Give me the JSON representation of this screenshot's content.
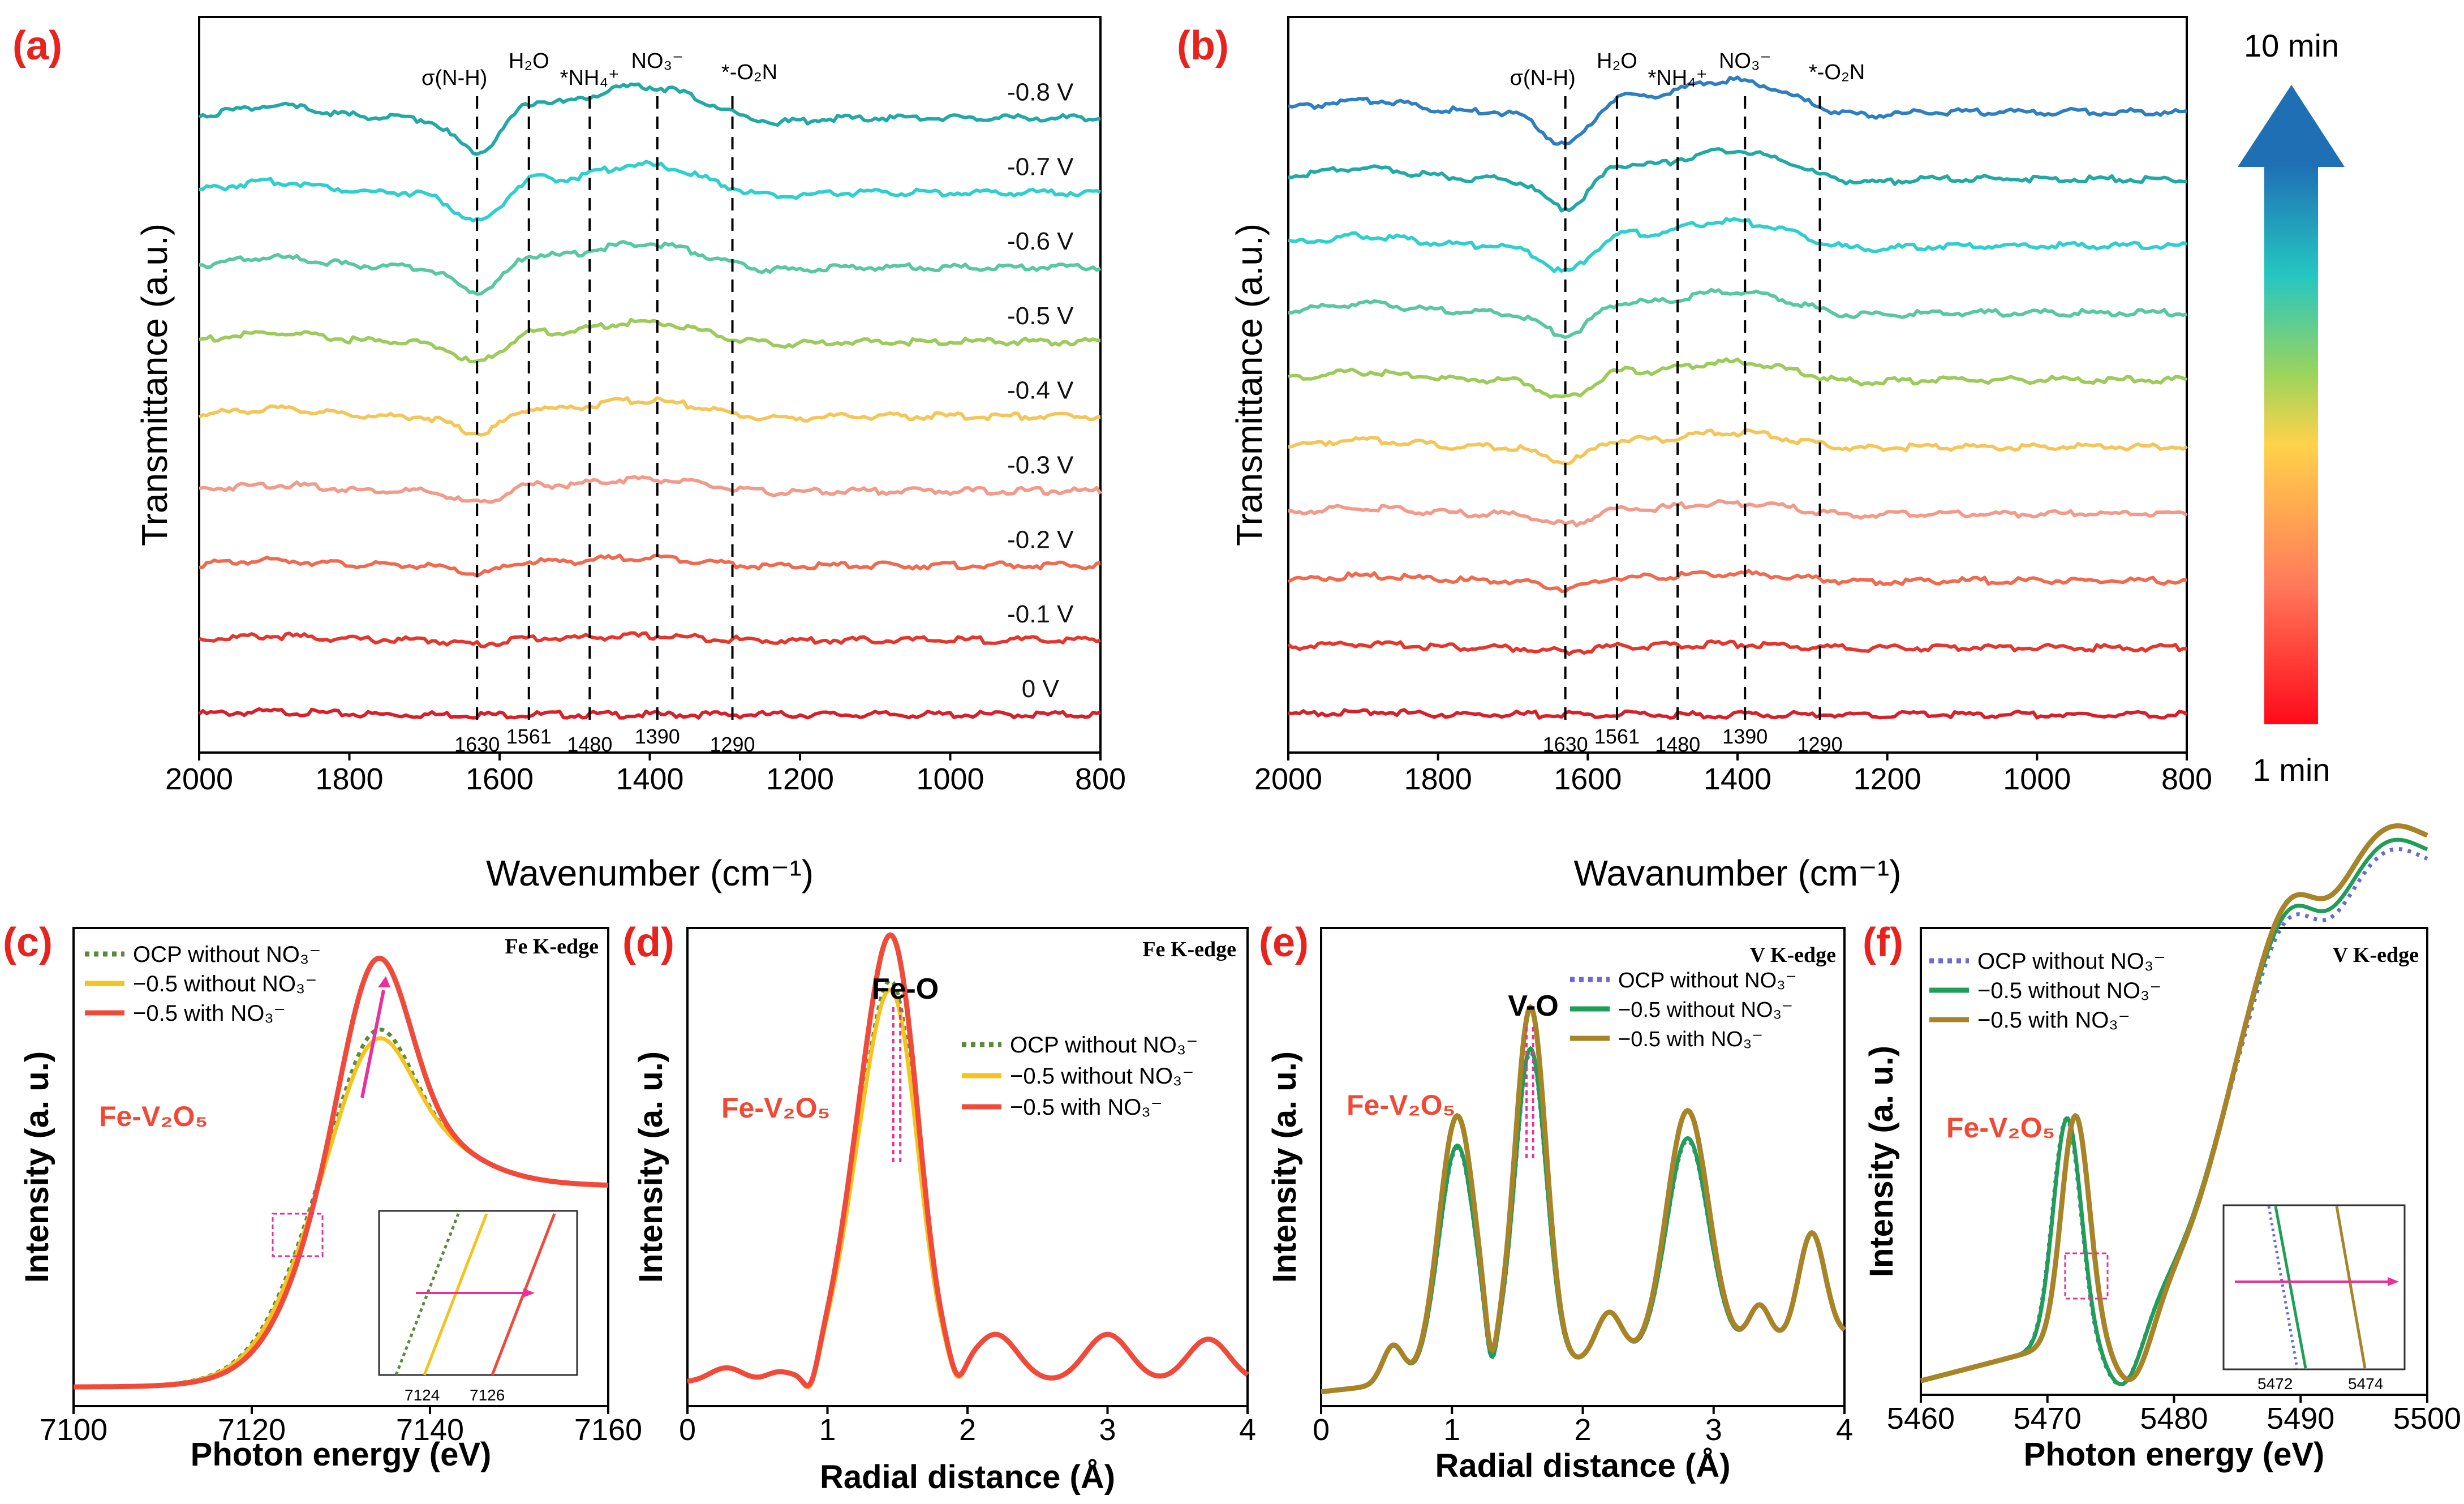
{
  "colors": {
    "panel_label": "#e8231e",
    "fe_v2o5": "#f04a36",
    "arrow_pink": "#e8319a",
    "dash_pink": "#e8319a",
    "curves_ab": [
      "#d8202a",
      "#e3362d",
      "#ef6a4f",
      "#f39b8b",
      "#f4c65a",
      "#9ccb5a",
      "#58c8a0",
      "#2fcfd0",
      "#21a9a8",
      "#2d7fc2"
    ],
    "ocp_cd": "#5a8a3a",
    "m05wo_cd": "#f6c21c",
    "m05w_cd": "#ef4a3a",
    "ocp_ef": "#6a6ad0",
    "m05wo_ef": "#1e9e57",
    "m05w_ef": "#a88428"
  },
  "colorbar": {
    "top_label": "10 min",
    "bottom_label": "1 min"
  },
  "chart_data": [
    {
      "id": "a",
      "panel_label": "(a)",
      "type": "line",
      "xlabel": "Wavenumber (cm⁻¹)",
      "ylabel": "Transmittance (a.u.)",
      "xlim": [
        2000,
        800
      ],
      "xticks": [
        2000,
        1800,
        1600,
        1400,
        1200,
        1000,
        800
      ],
      "series_labels": [
        "0 V",
        "-0.1 V",
        "-0.2 V",
        "-0.3 V",
        "-0.4 V",
        "-0.5 V",
        "-0.6 V",
        "-0.7 V",
        "-0.8 V"
      ],
      "series_offsets": [
        0,
        1,
        2,
        3,
        4,
        5,
        6,
        7,
        8
      ],
      "ref_lines": [
        1630,
        1561,
        1480,
        1390,
        1290
      ],
      "ref_tick_labels": [
        "1630",
        "1561",
        "1480",
        "1390",
        "1290"
      ],
      "band_labels": [
        "σ(N-H)",
        "H₂O",
        "*NH₄⁺",
        "NO₃⁻",
        "*-O₂N"
      ]
    },
    {
      "id": "b",
      "panel_label": "(b)",
      "type": "line",
      "xlabel": "Wavanumber (cm⁻¹)",
      "ylabel": "Transmittance (a.u.)",
      "xlim": [
        2000,
        800
      ],
      "xticks": [
        2000,
        1800,
        1600,
        1400,
        1200,
        1000,
        800
      ],
      "n_series": 10,
      "ref_lines": [
        1630,
        1561,
        1480,
        1390,
        1290
      ],
      "ref_tick_labels": [
        "1630",
        "1561",
        "1480",
        "1390",
        "1290"
      ],
      "band_labels": [
        "σ(N-H)",
        "H₂O",
        "*NH₄⁺",
        "NO₃⁻",
        "*-O₂N"
      ]
    },
    {
      "id": "c",
      "panel_label": "(c)",
      "type": "line",
      "edge": "Fe K-edge",
      "material": "Fe-V₂O₅",
      "xlabel": "Photon energy (eV)",
      "ylabel": "Intensity (a. u.)",
      "xlim": [
        7100,
        7160
      ],
      "xticks": [
        7100,
        7120,
        7140,
        7160
      ],
      "legend": [
        "OCP  without NO₃⁻",
        "−0.5  without NO₃⁻",
        "−0.5  with NO₃⁻"
      ],
      "peak_energy": 7134,
      "inset_xticks": [
        "7124",
        "7126"
      ]
    },
    {
      "id": "d",
      "panel_label": "(d)",
      "type": "line",
      "edge": "Fe K-edge",
      "material": "Fe-V₂O₅",
      "peak_label": "Fe-O",
      "xlabel": "Radial distance (Å)",
      "ylabel": "Intensity (a. u.)",
      "xlim": [
        0,
        4
      ],
      "xticks": [
        0,
        1,
        2,
        3,
        4
      ],
      "legend": [
        "OCP without NO₃⁻",
        "−0.5 without NO₃⁻",
        "−0.5 with NO₃⁻"
      ],
      "peak_r": 1.5
    },
    {
      "id": "e",
      "panel_label": "(e)",
      "type": "line",
      "edge": "V K-edge",
      "material": "Fe-V₂O₅",
      "peak_label": "V-O",
      "xlabel": "Radial distance (Å)",
      "ylabel": "Intensity (a. u.)",
      "xlim": [
        0,
        4
      ],
      "xticks": [
        0,
        1,
        2,
        3,
        4
      ],
      "legend": [
        "OCP without NO₃⁻",
        "−0.5 without NO₃⁻",
        "−0.5 with NO₃⁻"
      ],
      "peaks_r": [
        1.05,
        1.6,
        2.2,
        2.8,
        3.35,
        3.75
      ]
    },
    {
      "id": "f",
      "panel_label": "(f)",
      "type": "line",
      "edge": "V K-edge",
      "material": "Fe-V₂O₅",
      "xlabel": "Photon energy (eV)",
      "ylabel": "Intensity (a. u.)",
      "xlim": [
        5460,
        5500
      ],
      "xticks": [
        5460,
        5470,
        5480,
        5490,
        5500
      ],
      "legend": [
        "OCP without NO₃⁻",
        "−0.5 without NO₃⁻",
        "−0.5 with NO₃⁻"
      ],
      "pre_edge_peak": 5472,
      "inset_xticks": [
        "5472",
        "5474"
      ]
    }
  ]
}
